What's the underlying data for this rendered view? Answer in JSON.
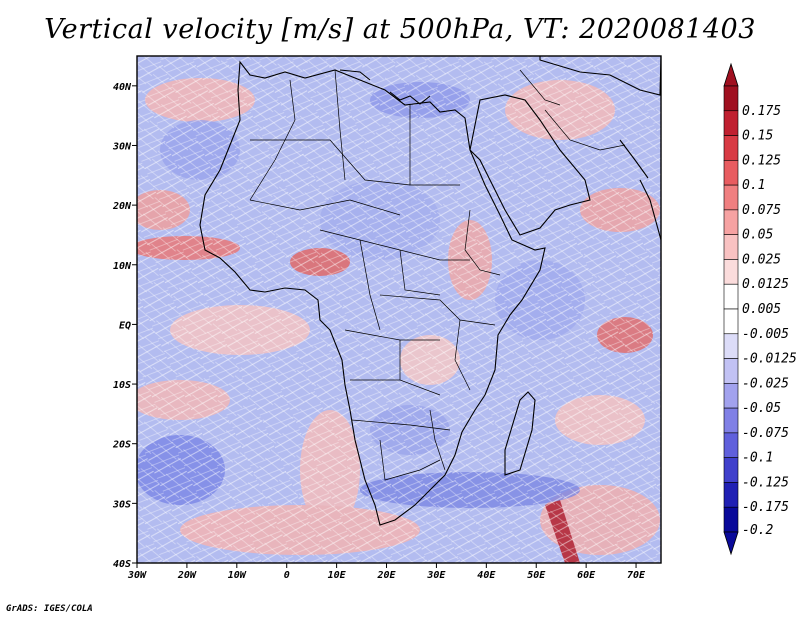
{
  "title": "Vertical velocity [m/s] at 500hPa, VT: 2020081403",
  "credit": "GrADS: IGES/COLA",
  "map": {
    "region": "Africa and surrounding oceans",
    "variable": "vertical velocity at 500hPa (m/s)",
    "lon_range": [
      -30,
      75
    ],
    "lat_range": [
      -40,
      45
    ],
    "lon_ticks": [
      "30W",
      "20W",
      "10W",
      "0",
      "10E",
      "20E",
      "30E",
      "40E",
      "50E",
      "60E",
      "70E"
    ],
    "lat_ticks": [
      "40N",
      "30N",
      "20N",
      "10N",
      "EQ",
      "10S",
      "20S",
      "30S",
      "40S"
    ]
  },
  "colorbar": {
    "labels": [
      "0.175",
      "0.15",
      "0.125",
      "0.1",
      "0.075",
      "0.05",
      "0.025",
      "0.0125",
      "0.005",
      "-0.005",
      "-0.0125",
      "-0.025",
      "-0.05",
      "-0.075",
      "-0.1",
      "-0.125",
      "-0.175",
      "-0.2"
    ],
    "colors": [
      "#a01020",
      "#c02030",
      "#d83a44",
      "#e85c60",
      "#f07f80",
      "#f6a2a2",
      "#f9c2c2",
      "#fbdcdc",
      "#ffffff",
      "#ffffff",
      "#dcdcf8",
      "#c2c2f4",
      "#a2a2ee",
      "#8080e6",
      "#6060dc",
      "#4040cc",
      "#2020b4",
      "#0a0a9a"
    ],
    "top_arrow_color": "#a01020",
    "bottom_arrow_color": "#0a0a9a"
  },
  "palette": {
    "ocean_base": "#a9b4ef",
    "land_line": "#000000"
  }
}
